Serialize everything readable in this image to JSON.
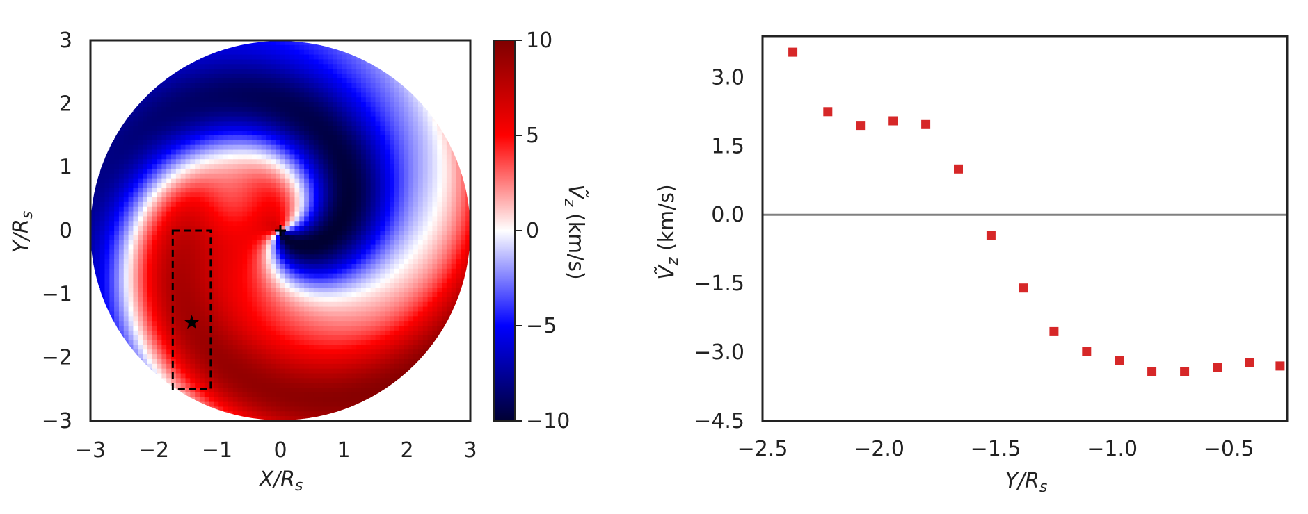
{
  "chart_data": [
    {
      "type": "heatmap",
      "xlabel": "X/R_s",
      "ylabel": "Y/R_s",
      "xlim": [
        -3,
        3
      ],
      "ylim": [
        -3,
        3
      ],
      "x_ticks": [
        "−3",
        "−2",
        "−1",
        "0",
        "1",
        "2",
        "3"
      ],
      "y_ticks": [
        "−3",
        "−2",
        "−1",
        "0",
        "1",
        "2",
        "3"
      ],
      "colorbar": {
        "label": "Ṽz (km/s)",
        "range": [
          -10,
          10
        ],
        "ticks": [
          "−10",
          "−5",
          "0",
          "5",
          "10"
        ],
        "colormap": [
          "#000033",
          "#0000ff",
          "#ffffff",
          "#ff0000",
          "#7f0000"
        ]
      },
      "field_description": "spiral velocity field within a disk of radius 3",
      "grid": false,
      "annotations": [
        {
          "type": "rectangle",
          "style": "dashed",
          "x_range": [
            -1.7,
            -1.1
          ],
          "y_range": [
            -2.5,
            0.0
          ]
        },
        {
          "type": "marker",
          "symbol": "star",
          "x": -1.4,
          "y": -1.45
        },
        {
          "type": "marker",
          "symbol": "plus",
          "x": 0.0,
          "y": 0.0
        }
      ]
    },
    {
      "type": "scatter",
      "xlabel": "Y/R_s",
      "ylabel": "Ṽz (km/s)",
      "xlim": [
        -2.5,
        -0.25
      ],
      "ylim": [
        -4.5,
        3.9
      ],
      "x_ticks": [
        "−2.5",
        "−2.0",
        "−1.5",
        "−1.0",
        "−0.5"
      ],
      "y_ticks": [
        "3.0",
        "1.5",
        "0.0",
        "−1.5",
        "−3.0",
        "−4.5"
      ],
      "hline": 0.0,
      "grid": false,
      "marker_color": "#d62728",
      "x": [
        -2.37,
        -2.22,
        -2.08,
        -1.94,
        -1.8,
        -1.66,
        -1.52,
        -1.38,
        -1.25,
        -1.11,
        -0.97,
        -0.83,
        -0.69,
        -0.55,
        -0.41,
        -0.28
      ],
      "y": [
        3.55,
        2.25,
        1.95,
        2.05,
        1.97,
        1.0,
        -0.45,
        -1.6,
        -2.55,
        -2.98,
        -3.18,
        -3.42,
        -3.43,
        -3.33,
        -3.23,
        -3.3
      ]
    }
  ]
}
